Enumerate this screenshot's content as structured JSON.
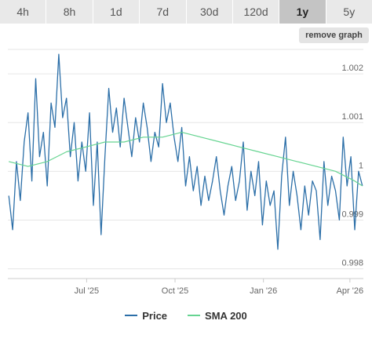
{
  "range_tabs": [
    {
      "label": "4h",
      "active": false
    },
    {
      "label": "8h",
      "active": false
    },
    {
      "label": "1d",
      "active": false
    },
    {
      "label": "7d",
      "active": false
    },
    {
      "label": "30d",
      "active": false
    },
    {
      "label": "120d",
      "active": false
    },
    {
      "label": "1y",
      "active": true
    },
    {
      "label": "5y",
      "active": false
    }
  ],
  "remove_graph_label": "remove graph",
  "colors": {
    "price": "#2c6fa8",
    "sma": "#66d491",
    "grid": "#e6e6e6"
  },
  "chart_data": {
    "type": "line",
    "xlabel": "",
    "ylabel": "",
    "x_range": [
      "2025-04-10",
      "2026-04-15"
    ],
    "ylim": [
      0.9978,
      1.0025
    ],
    "x_ticks": [
      {
        "label": "Jul '25",
        "date": "2025-07-01"
      },
      {
        "label": "Oct '25",
        "date": "2025-10-01"
      },
      {
        "label": "Jan '26",
        "date": "2026-01-01"
      },
      {
        "label": "Apr '26",
        "date": "2026-04-01"
      }
    ],
    "y_ticks": [
      {
        "label": "0.998",
        "value": 0.998
      },
      {
        "label": "0.999",
        "value": 0.999
      },
      {
        "label": "1",
        "value": 1.0
      },
      {
        "label": "1.001",
        "value": 1.001
      },
      {
        "label": "1.002",
        "value": 1.002
      }
    ],
    "grid": true,
    "legend_position": "bottom",
    "series": [
      {
        "name": "Price",
        "x": [
          "2025-04-11",
          "2025-04-15",
          "2025-04-19",
          "2025-04-23",
          "2025-04-27",
          "2025-05-01",
          "2025-05-05",
          "2025-05-09",
          "2025-05-13",
          "2025-05-17",
          "2025-05-21",
          "2025-05-25",
          "2025-05-29",
          "2025-06-02",
          "2025-06-06",
          "2025-06-10",
          "2025-06-14",
          "2025-06-18",
          "2025-06-22",
          "2025-06-26",
          "2025-06-30",
          "2025-07-04",
          "2025-07-08",
          "2025-07-12",
          "2025-07-16",
          "2025-07-20",
          "2025-07-24",
          "2025-07-28",
          "2025-08-01",
          "2025-08-05",
          "2025-08-09",
          "2025-08-13",
          "2025-08-17",
          "2025-08-21",
          "2025-08-25",
          "2025-08-29",
          "2025-09-02",
          "2025-09-06",
          "2025-09-10",
          "2025-09-14",
          "2025-09-18",
          "2025-09-22",
          "2025-09-26",
          "2025-09-30",
          "2025-10-04",
          "2025-10-08",
          "2025-10-12",
          "2025-10-16",
          "2025-10-20",
          "2025-10-24",
          "2025-10-28",
          "2025-11-01",
          "2025-11-05",
          "2025-11-09",
          "2025-11-13",
          "2025-11-17",
          "2025-11-21",
          "2025-11-25",
          "2025-11-29",
          "2025-12-03",
          "2025-12-07",
          "2025-12-11",
          "2025-12-15",
          "2025-12-19",
          "2025-12-23",
          "2025-12-27",
          "2025-12-31",
          "2026-01-04",
          "2026-01-08",
          "2026-01-12",
          "2026-01-16",
          "2026-01-20",
          "2026-01-24",
          "2026-01-28",
          "2026-02-01",
          "2026-02-05",
          "2026-02-09",
          "2026-02-13",
          "2026-02-17",
          "2026-02-21",
          "2026-02-25",
          "2026-03-01",
          "2026-03-05",
          "2026-03-09",
          "2026-03-13",
          "2026-03-17",
          "2026-03-21",
          "2026-03-25",
          "2026-03-29",
          "2026-04-02",
          "2026-04-06",
          "2026-04-10",
          "2026-04-14"
        ],
        "values": [
          0.9995,
          0.9988,
          1.0002,
          0.9994,
          1.0006,
          1.0012,
          0.9998,
          1.0019,
          1.0003,
          1.0008,
          0.9997,
          1.0014,
          1.0009,
          1.0024,
          1.0011,
          1.0015,
          1.0003,
          1.001,
          0.9998,
          1.0006,
          1.0,
          1.0012,
          0.9993,
          1.0006,
          0.9987,
          1.0003,
          1.0017,
          1.0008,
          1.0013,
          1.0005,
          1.0015,
          1.0009,
          1.0003,
          1.0011,
          1.0006,
          1.0014,
          1.0009,
          1.0002,
          1.0008,
          1.0005,
          1.0018,
          1.001,
          1.0014,
          1.0007,
          1.0002,
          1.0009,
          0.9997,
          1.0003,
          0.9996,
          1.0001,
          0.9993,
          0.9999,
          0.9994,
          0.9998,
          1.0003,
          0.9996,
          0.9991,
          0.9997,
          1.0001,
          0.9994,
          0.9998,
          1.0006,
          0.9992,
          1.0,
          0.9995,
          1.0002,
          0.9989,
          0.9998,
          0.9993,
          0.9996,
          0.9984,
          0.9999,
          1.0007,
          0.9993,
          1.0,
          0.9995,
          0.9988,
          0.9997,
          0.9991,
          0.9998,
          0.9996,
          0.9986,
          1.0002,
          0.9993,
          0.9999,
          0.9996,
          0.999,
          1.0007,
          0.9997,
          1.0003,
          0.9988,
          1.0,
          0.9997
        ]
      },
      {
        "name": "SMA 200",
        "x": [
          "2025-04-11",
          "2025-05-01",
          "2025-05-21",
          "2025-06-10",
          "2025-06-30",
          "2025-07-20",
          "2025-08-09",
          "2025-08-29",
          "2025-09-18",
          "2025-10-08",
          "2025-10-28",
          "2025-11-17",
          "2025-12-07",
          "2025-12-27",
          "2026-01-16",
          "2026-02-05",
          "2026-02-25",
          "2026-03-17",
          "2026-04-06",
          "2026-04-14"
        ],
        "values": [
          1.0002,
          1.0001,
          1.0002,
          1.0004,
          1.0005,
          1.0006,
          1.0006,
          1.0007,
          1.0007,
          1.0008,
          1.0007,
          1.0006,
          1.0005,
          1.0004,
          1.0003,
          1.0002,
          1.0001,
          1.0,
          0.9998,
          0.9997
        ]
      }
    ]
  }
}
